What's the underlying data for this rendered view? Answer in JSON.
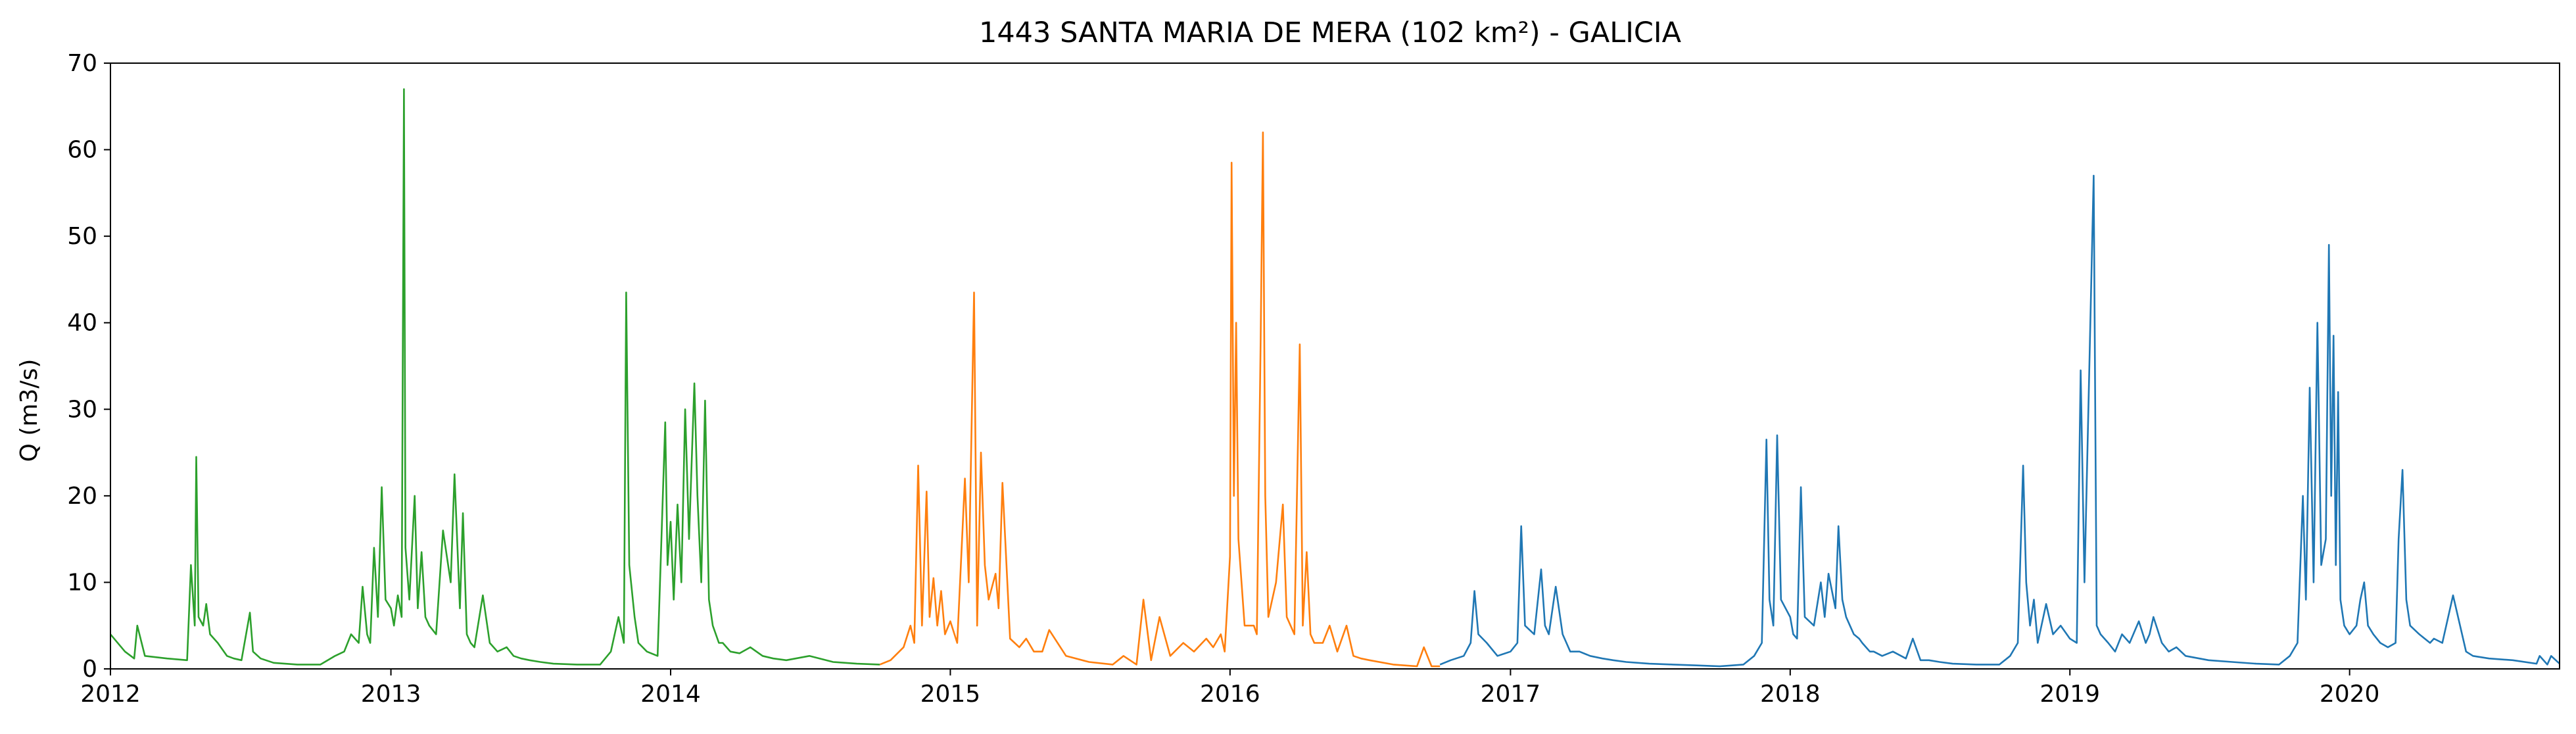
{
  "chart_data": {
    "type": "line",
    "title": "1443 SANTA MARIA DE MERA (102 km²) - GALICIA",
    "xlabel": "",
    "ylabel": "Q (m3/s)",
    "x_type": "date",
    "xlim": [
      "2012-01-01",
      "2020-10-01"
    ],
    "ylim": [
      0,
      70
    ],
    "xticks": [
      "2012",
      "2013",
      "2014",
      "2015",
      "2016",
      "2017",
      "2018",
      "2019",
      "2020"
    ],
    "yticks": [
      0,
      10,
      20,
      30,
      40,
      50,
      60,
      70
    ],
    "grid": false,
    "legend": false,
    "series": [
      {
        "color": "#2ca02c",
        "x": [
          "2012-01-01",
          "2012-01-20",
          "2012-02-01",
          "2012-02-05",
          "2012-02-15",
          "2012-03-15",
          "2012-04-10",
          "2012-04-15",
          "2012-04-20",
          "2012-04-22",
          "2012-04-25",
          "2012-05-01",
          "2012-05-05",
          "2012-05-10",
          "2012-05-20",
          "2012-06-01",
          "2012-06-10",
          "2012-06-20",
          "2012-07-01",
          "2012-07-05",
          "2012-07-15",
          "2012-08-01",
          "2012-09-01",
          "2012-10-01",
          "2012-10-20",
          "2012-11-01",
          "2012-11-10",
          "2012-11-20",
          "2012-11-25",
          "2012-12-01",
          "2012-12-05",
          "2012-12-10",
          "2012-12-15",
          "2012-12-20",
          "2012-12-25",
          "2013-01-01",
          "2013-01-05",
          "2013-01-10",
          "2013-01-15",
          "2013-01-18",
          "2013-01-20",
          "2013-01-25",
          "2013-02-01",
          "2013-02-05",
          "2013-02-10",
          "2013-02-15",
          "2013-02-20",
          "2013-03-01",
          "2013-03-10",
          "2013-03-20",
          "2013-03-25",
          "2013-04-01",
          "2013-04-05",
          "2013-04-10",
          "2013-04-15",
          "2013-04-20",
          "2013-05-01",
          "2013-05-10",
          "2013-05-20",
          "2013-06-01",
          "2013-06-10",
          "2013-06-20",
          "2013-07-01",
          "2013-07-15",
          "2013-08-01",
          "2013-09-01",
          "2013-10-01",
          "2013-10-15",
          "2013-10-25",
          "2013-11-01",
          "2013-11-04",
          "2013-11-08",
          "2013-11-15",
          "2013-11-20",
          "2013-12-01",
          "2013-12-15",
          "2013-12-25",
          "2013-12-28",
          "2014-01-01",
          "2014-01-05",
          "2014-01-10",
          "2014-01-15",
          "2014-01-20",
          "2014-01-25",
          "2014-02-01",
          "2014-02-05",
          "2014-02-10",
          "2014-02-15",
          "2014-02-20",
          "2014-02-25",
          "2014-03-01",
          "2014-03-05",
          "2014-03-10",
          "2014-03-15",
          "2014-03-20",
          "2014-04-01",
          "2014-04-15",
          "2014-05-01",
          "2014-05-15",
          "2014-06-01",
          "2014-07-01",
          "2014-08-01",
          "2014-09-01",
          "2014-10-01"
        ],
        "y": [
          4.0,
          2.0,
          1.2,
          5.0,
          1.5,
          1.2,
          1.0,
          12.0,
          5.0,
          24.5,
          6.0,
          5.0,
          7.5,
          4.0,
          3.0,
          1.5,
          1.2,
          1.0,
          6.5,
          2.0,
          1.2,
          0.7,
          0.5,
          0.5,
          1.5,
          2.0,
          4.0,
          3.0,
          9.5,
          4.0,
          3.0,
          14.0,
          6.0,
          21.0,
          8.0,
          7.0,
          5.0,
          8.5,
          6.0,
          67.0,
          14.0,
          8.0,
          20.0,
          7.0,
          13.5,
          6.0,
          5.0,
          4.0,
          16.0,
          10.0,
          22.5,
          7.0,
          18.0,
          4.0,
          3.0,
          2.5,
          8.5,
          3.0,
          2.0,
          2.5,
          1.5,
          1.2,
          1.0,
          0.8,
          0.6,
          0.5,
          0.5,
          2.0,
          6.0,
          3.0,
          43.5,
          12.0,
          6.0,
          3.0,
          2.0,
          1.5,
          28.5,
          12.0,
          17.0,
          8.0,
          19.0,
          10.0,
          30.0,
          15.0,
          33.0,
          20.0,
          10.0,
          31.0,
          8.0,
          5.0,
          4.0,
          3.0,
          3.0,
          2.5,
          2.0,
          1.8,
          2.5,
          1.5,
          1.2,
          1.0,
          1.5,
          0.8,
          0.6,
          0.5
        ]
      },
      {
        "color": "#ff7f0e",
        "x": [
          "2014-10-01",
          "2014-10-15",
          "2014-11-01",
          "2014-11-10",
          "2014-11-15",
          "2014-11-20",
          "2014-11-25",
          "2014-12-01",
          "2014-12-05",
          "2014-12-10",
          "2014-12-15",
          "2014-12-20",
          "2014-12-25",
          "2015-01-01",
          "2015-01-10",
          "2015-01-20",
          "2015-01-25",
          "2015-02-01",
          "2015-02-05",
          "2015-02-10",
          "2015-02-15",
          "2015-02-20",
          "2015-03-01",
          "2015-03-05",
          "2015-03-10",
          "2015-03-20",
          "2015-04-01",
          "2015-04-10",
          "2015-04-20",
          "2015-05-01",
          "2015-05-10",
          "2015-06-01",
          "2015-07-01",
          "2015-08-01",
          "2015-08-15",
          "2015-09-01",
          "2015-09-10",
          "2015-09-20",
          "2015-10-01",
          "2015-10-15",
          "2015-11-01",
          "2015-11-15",
          "2015-12-01",
          "2015-12-10",
          "2015-12-20",
          "2015-12-25",
          "2016-01-01",
          "2016-01-03",
          "2016-01-06",
          "2016-01-09",
          "2016-01-12",
          "2016-01-20",
          "2016-02-01",
          "2016-02-05",
          "2016-02-10",
          "2016-02-13",
          "2016-02-16",
          "2016-02-20",
          "2016-03-01",
          "2016-03-10",
          "2016-03-15",
          "2016-03-20",
          "2016-03-25",
          "2016-04-01",
          "2016-04-05",
          "2016-04-10",
          "2016-04-15",
          "2016-04-20",
          "2016-05-01",
          "2016-05-10",
          "2016-05-20",
          "2016-06-01",
          "2016-06-10",
          "2016-06-20",
          "2016-07-01",
          "2016-08-01",
          "2016-09-01",
          "2016-09-10",
          "2016-09-20",
          "2016-10-01"
        ],
        "y": [
          0.5,
          1.0,
          2.5,
          5.0,
          3.0,
          23.5,
          5.0,
          20.5,
          6.0,
          10.5,
          5.0,
          9.0,
          4.0,
          5.5,
          3.0,
          22.0,
          10.0,
          43.5,
          5.0,
          25.0,
          12.0,
          8.0,
          11.0,
          7.0,
          21.5,
          3.5,
          2.5,
          3.5,
          2.0,
          2.0,
          4.5,
          1.5,
          0.8,
          0.5,
          1.5,
          0.5,
          8.0,
          1.0,
          6.0,
          1.5,
          3.0,
          2.0,
          3.5,
          2.5,
          4.0,
          2.0,
          13.0,
          58.5,
          20.0,
          40.0,
          15.0,
          5.0,
          5.0,
          4.0,
          38.0,
          62.0,
          20.0,
          6.0,
          10.0,
          19.0,
          6.0,
          5.0,
          4.0,
          37.5,
          5.0,
          13.5,
          4.0,
          3.0,
          3.0,
          5.0,
          2.0,
          5.0,
          1.5,
          1.2,
          1.0,
          0.5,
          0.3,
          2.5,
          0.3,
          0.3
        ]
      },
      {
        "color": "#1f77b4",
        "x": [
          "2016-10-01",
          "2016-10-15",
          "2016-11-01",
          "2016-11-10",
          "2016-11-15",
          "2016-11-20",
          "2016-12-01",
          "2016-12-15",
          "2017-01-01",
          "2017-01-10",
          "2017-01-15",
          "2017-01-20",
          "2017-02-01",
          "2017-02-10",
          "2017-02-15",
          "2017-02-20",
          "2017-03-01",
          "2017-03-10",
          "2017-03-15",
          "2017-03-20",
          "2017-04-01",
          "2017-04-15",
          "2017-05-01",
          "2017-05-15",
          "2017-06-01",
          "2017-07-01",
          "2017-08-01",
          "2017-09-01",
          "2017-10-01",
          "2017-11-01",
          "2017-11-15",
          "2017-11-25",
          "2017-12-01",
          "2017-12-05",
          "2017-12-10",
          "2017-12-15",
          "2017-12-20",
          "2018-01-01",
          "2018-01-05",
          "2018-01-10",
          "2018-01-15",
          "2018-01-20",
          "2018-02-01",
          "2018-02-10",
          "2018-02-15",
          "2018-02-20",
          "2018-03-01",
          "2018-03-05",
          "2018-03-10",
          "2018-03-15",
          "2018-03-20",
          "2018-03-25",
          "2018-04-01",
          "2018-04-05",
          "2018-04-10",
          "2018-04-15",
          "2018-04-20",
          "2018-05-01",
          "2018-05-15",
          "2018-06-01",
          "2018-06-10",
          "2018-06-20",
          "2018-07-01",
          "2018-07-15",
          "2018-08-01",
          "2018-09-01",
          "2018-10-01",
          "2018-10-15",
          "2018-10-25",
          "2018-11-01",
          "2018-11-05",
          "2018-11-10",
          "2018-11-15",
          "2018-11-20",
          "2018-12-01",
          "2018-12-10",
          "2018-12-20",
          "2019-01-01",
          "2019-01-10",
          "2019-01-15",
          "2019-01-20",
          "2019-02-01",
          "2019-02-05",
          "2019-02-10",
          "2019-02-20",
          "2019-03-01",
          "2019-03-10",
          "2019-03-20",
          "2019-04-01",
          "2019-04-10",
          "2019-04-15",
          "2019-04-20",
          "2019-05-01",
          "2019-05-10",
          "2019-05-20",
          "2019-06-01",
          "2019-07-01",
          "2019-08-01",
          "2019-09-01",
          "2019-10-01",
          "2019-10-15",
          "2019-10-25",
          "2019-11-01",
          "2019-11-05",
          "2019-11-10",
          "2019-11-15",
          "2019-11-20",
          "2019-11-25",
          "2019-12-01",
          "2019-12-05",
          "2019-12-08",
          "2019-12-11",
          "2019-12-14",
          "2019-12-17",
          "2019-12-20",
          "2019-12-25",
          "2020-01-01",
          "2020-01-10",
          "2020-01-15",
          "2020-01-20",
          "2020-01-25",
          "2020-02-01",
          "2020-02-10",
          "2020-02-20",
          "2020-03-01",
          "2020-03-05",
          "2020-03-10",
          "2020-03-15",
          "2020-03-20",
          "2020-04-01",
          "2020-04-15",
          "2020-04-20",
          "2020-05-01",
          "2020-05-15",
          "2020-06-01",
          "2020-06-10",
          "2020-07-01",
          "2020-08-01",
          "2020-09-01",
          "2020-09-05",
          "2020-09-15",
          "2020-09-20",
          "2020-10-01"
        ],
        "y": [
          0.5,
          1.0,
          1.5,
          3.0,
          9.0,
          4.0,
          3.0,
          1.5,
          2.0,
          3.0,
          16.5,
          5.0,
          4.0,
          11.5,
          5.0,
          4.0,
          9.5,
          4.0,
          3.0,
          2.0,
          2.0,
          1.5,
          1.2,
          1.0,
          0.8,
          0.6,
          0.5,
          0.4,
          0.3,
          0.5,
          1.5,
          3.0,
          26.5,
          8.0,
          5.0,
          27.0,
          8.0,
          6.0,
          4.0,
          3.5,
          21.0,
          6.0,
          5.0,
          10.0,
          6.0,
          11.0,
          7.0,
          16.5,
          8.0,
          6.0,
          5.0,
          4.0,
          3.5,
          3.0,
          2.5,
          2.0,
          2.0,
          1.5,
          2.0,
          1.2,
          3.5,
          1.0,
          1.0,
          0.8,
          0.6,
          0.5,
          0.5,
          1.5,
          3.0,
          23.5,
          10.0,
          5.0,
          8.0,
          3.0,
          7.5,
          4.0,
          5.0,
          3.5,
          3.0,
          34.5,
          10.0,
          57.0,
          5.0,
          4.0,
          3.0,
          2.0,
          4.0,
          3.0,
          5.5,
          3.0,
          4.0,
          6.0,
          3.0,
          2.0,
          2.5,
          1.5,
          1.0,
          0.8,
          0.6,
          0.5,
          1.5,
          3.0,
          20.0,
          8.0,
          32.5,
          10.0,
          40.0,
          12.0,
          15.0,
          49.0,
          20.0,
          38.5,
          12.0,
          32.0,
          8.0,
          5.0,
          4.0,
          5.0,
          8.0,
          10.0,
          5.0,
          4.0,
          3.0,
          2.5,
          3.0,
          15.0,
          23.0,
          8.0,
          5.0,
          4.0,
          3.0,
          3.5,
          3.0,
          8.5,
          2.0,
          1.5,
          1.2,
          1.0,
          0.6,
          1.5,
          0.5,
          1.5,
          0.6
        ]
      }
    ]
  }
}
